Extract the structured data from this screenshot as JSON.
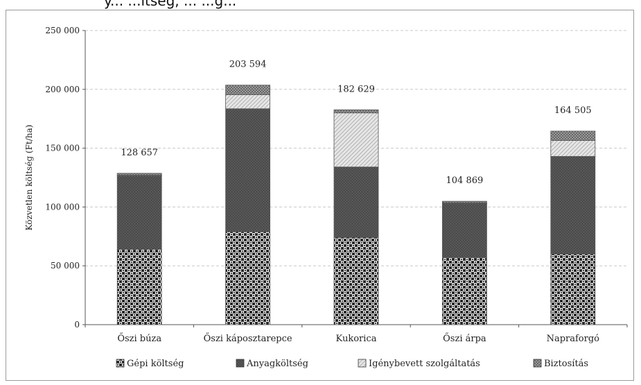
{
  "header_text": "y... ...ltség, ... ...g...",
  "chart_data": {
    "type": "bar",
    "stacked": true,
    "categories": [
      "Őszi búza",
      "Őszi káposztarepce",
      "Kukorica",
      "Őszi árpa",
      "Napraforgó"
    ],
    "series": [
      {
        "name": "Gépi költség",
        "values": [
          64000,
          79000,
          74000,
          57000,
          60000
        ],
        "pattern": "checker",
        "color": "#3a3a3a"
      },
      {
        "name": "Anyagköltség",
        "values": [
          62500,
          104500,
          60000,
          46000,
          83000
        ],
        "pattern": "dark",
        "color": "#555555"
      },
      {
        "name": "Igénybevett szolgáltatás",
        "values": [
          600,
          12000,
          46000,
          500,
          13500
        ],
        "pattern": "diagonal",
        "color": "#c8c8c8"
      },
      {
        "name": "Biztosítás",
        "values": [
          1557,
          8094,
          2629,
          1369,
          8005
        ],
        "pattern": "crosshatch",
        "color": "#8a8a8a"
      }
    ],
    "totals": [
      "128 657",
      "203 594",
      "182 629",
      "104 869",
      "164 505"
    ],
    "ylabel": "Közvetlen költség (Ft/ha)",
    "ylim": [
      0,
      250000
    ],
    "yticks": [
      0,
      50000,
      100000,
      150000,
      200000,
      250000
    ],
    "ytick_labels": [
      "0",
      "50 000",
      "100 000",
      "150 000",
      "200 000",
      "250 000"
    ],
    "grid": "dashed-horizontal",
    "legend_position": "bottom"
  }
}
